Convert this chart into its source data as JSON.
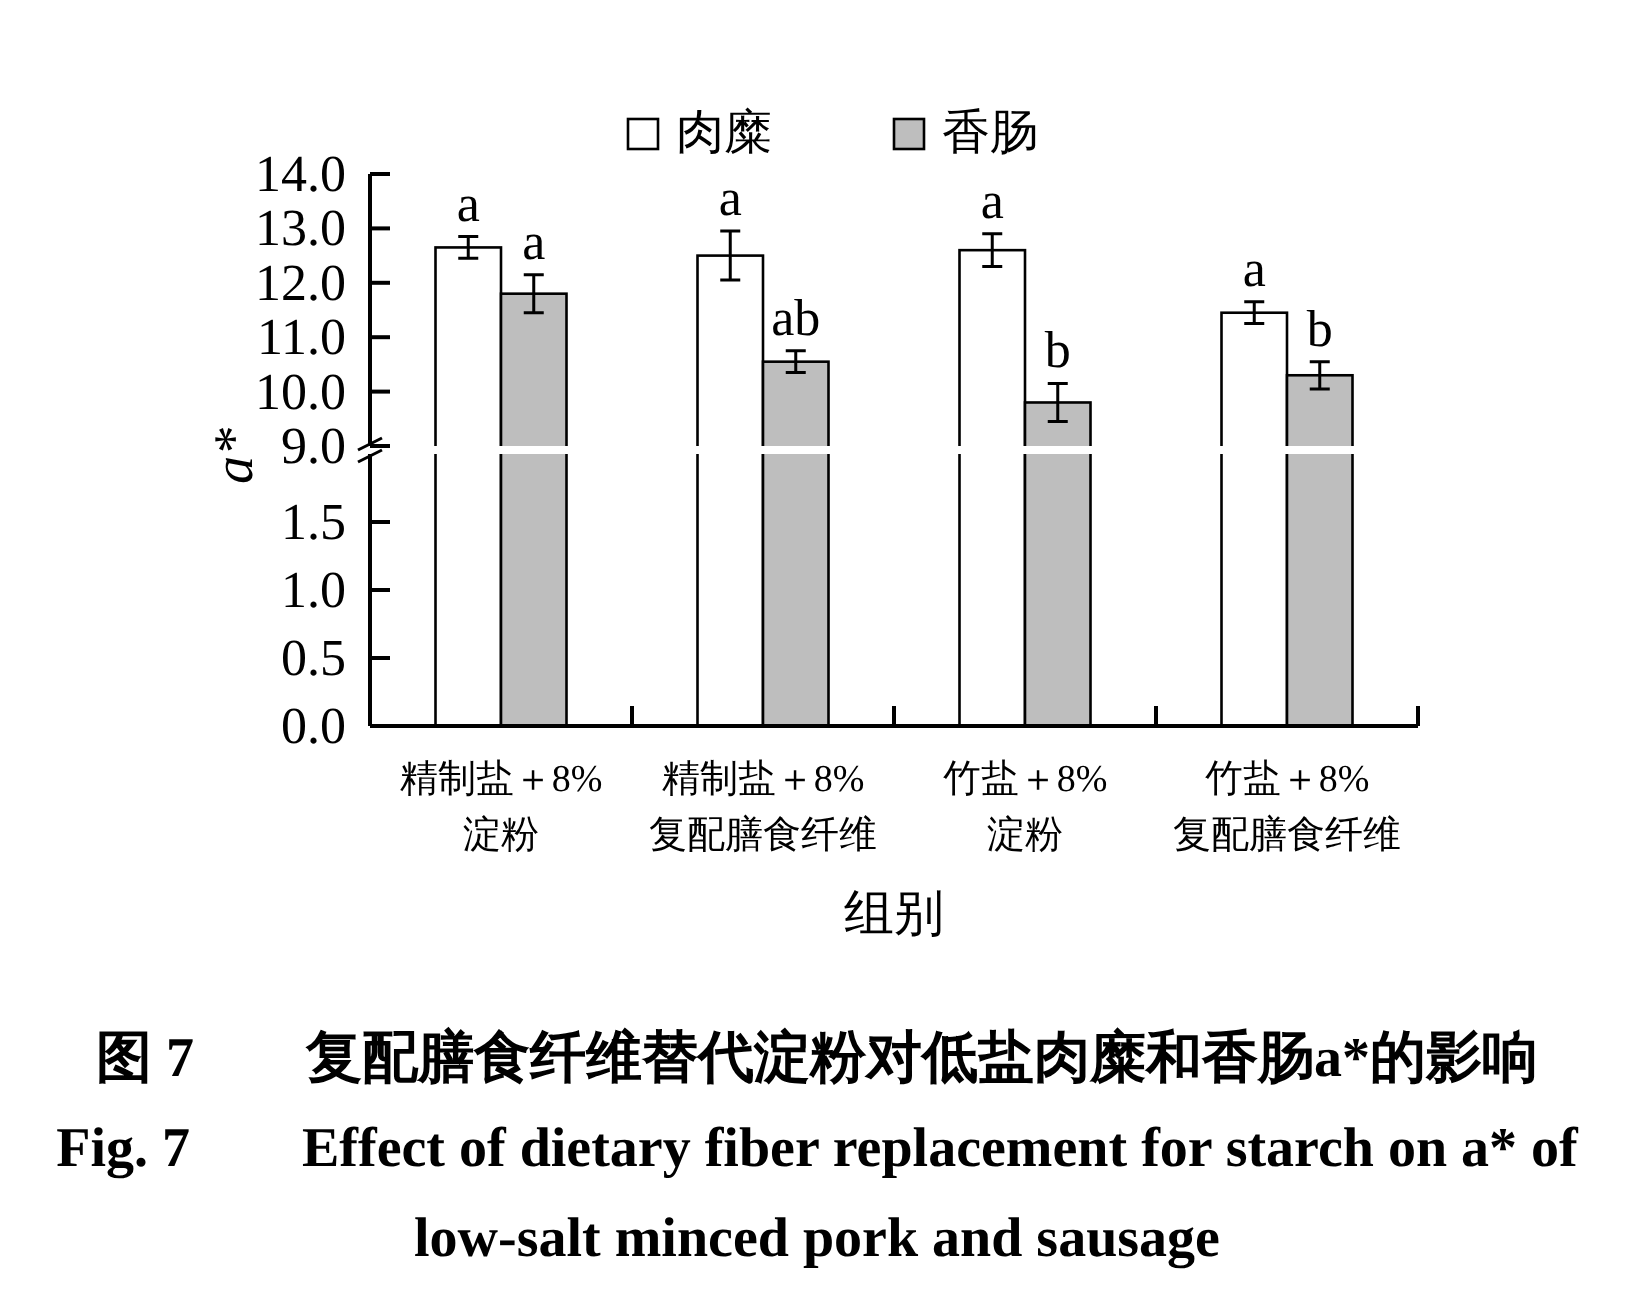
{
  "chart_data": [
    {
      "type": "bar",
      "ylabel": "a*",
      "categories": [
        null,
        null,
        null,
        null
      ],
      "series": [
        {
          "name": "肉糜",
          "color": "#ffffff",
          "values": [
            12.65,
            12.5,
            12.6,
            11.45
          ],
          "errors": [
            0.2,
            0.45,
            0.3,
            0.2
          ],
          "value_labels": [
            "a",
            "a",
            "a",
            "a"
          ]
        },
        {
          "name": "香肠",
          "color": "#bebebe",
          "values": [
            11.8,
            10.55,
            9.8,
            10.3
          ],
          "errors": [
            0.35,
            0.2,
            0.35,
            0.25
          ],
          "value_labels": [
            "a",
            "ab",
            "b",
            "b"
          ]
        }
      ],
      "ylim": [
        9,
        14
      ],
      "yticks": [
        {
          "value": 9,
          "label": "9.0"
        },
        {
          "value": 10,
          "label": "10.0"
        },
        {
          "value": 11,
          "label": "11.0"
        },
        {
          "value": 12,
          "label": "12.0"
        },
        {
          "value": 13,
          "label": "13.0"
        },
        {
          "value": 14,
          "label": "14.0"
        }
      ],
      "legend": "top"
    },
    {
      "type": "bar",
      "title": "图 7　　复配膳食纤维替代淀粉对低盐肉糜和香肠a*的影响",
      "subtitle": "Fig. 7  Effect of dietary fiber replacement for starch on a* of low-salt minced pork and sausage",
      "xlabel": "组别",
      "categories": [
        "精制盐＋8%\n淀粉",
        "精制盐＋8%\n复配膳食纤维",
        "竹盐＋8%\n淀粉",
        "竹盐＋8%\n复配膳食纤维"
      ],
      "ylim": [
        0,
        2
      ],
      "yticks": [
        {
          "value": 0,
          "label": "0.0"
        },
        {
          "value": 0.5,
          "label": "0.5"
        },
        {
          "value": 1,
          "label": "1.0"
        },
        {
          "value": 1.5,
          "label": "1.5"
        }
      ]
    }
  ]
}
